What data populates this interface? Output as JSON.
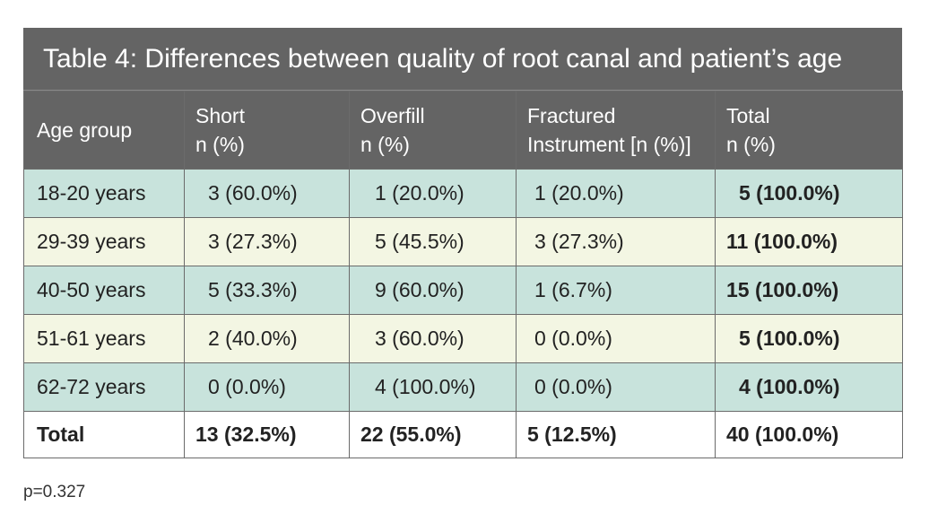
{
  "title": "Table 4: Differences between quality of root canal and patient’s age",
  "header": {
    "age": "Age group",
    "short": [
      "Short",
      "n (%)"
    ],
    "overfill": [
      "Overfill",
      "n (%)"
    ],
    "fractured": [
      "Fractured",
      "Instrument [n (%)]"
    ],
    "total": [
      "Total",
      "n (%)"
    ]
  },
  "rows": [
    {
      "age": "18-20 years",
      "short": "3 (60.0%)",
      "overfill": "1 (20.0%)",
      "fractured": "1 (20.0%)",
      "total": "5 (100.0%)"
    },
    {
      "age": "29-39 years",
      "short": "3 (27.3%)",
      "overfill": "5 (45.5%)",
      "fractured": "3 (27.3%)",
      "total": "11 (100.0%)"
    },
    {
      "age": "40-50 years",
      "short": "5 (33.3%)",
      "overfill": "9 (60.0%)",
      "fractured": "1 (6.7%)",
      "total": "15 (100.0%)"
    },
    {
      "age": "51-61 years",
      "short": "2 (40.0%)",
      "overfill": "3 (60.0%)",
      "fractured": "0 (0.0%)",
      "total": "5 (100.0%)"
    },
    {
      "age": "62-72 years",
      "short": "0 (0.0%)",
      "overfill": "4 (100.0%)",
      "fractured": "0 (0.0%)",
      "total": "4 (100.0%)"
    }
  ],
  "total_row": {
    "age": "Total",
    "short": "13 (32.5%)",
    "overfill": "22 (55.0%)",
    "fractured": "5 (12.5%)",
    "total": "40 (100.0%)"
  },
  "footnote": "p=0.327",
  "colors": {
    "header": "#646464",
    "row_green": "#c8e3dc",
    "row_cream": "#f3f6e3",
    "border": "#6b6b6b"
  }
}
